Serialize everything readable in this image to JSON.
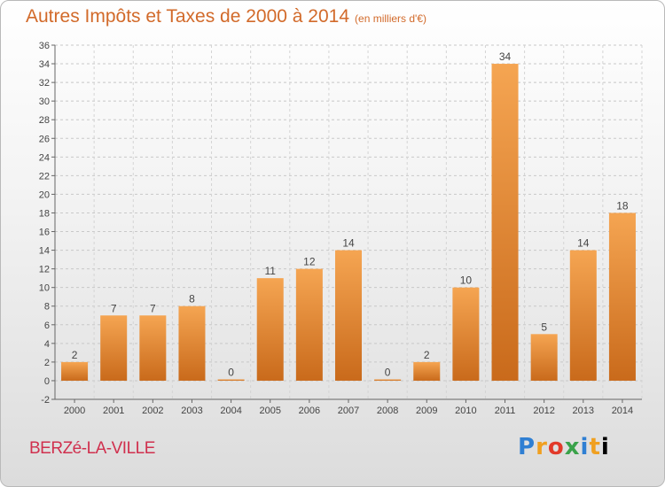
{
  "header": {
    "title": "Autres Impôts et Taxes de 2000 à 2014",
    "unit": "(en milliers d'€)"
  },
  "footer": {
    "place": "BERZé-LA-VILLE",
    "logo_letters": [
      "P",
      "r",
      "o",
      "x",
      "i",
      "t",
      "i"
    ]
  },
  "colors": {
    "bar_light": "#f5a552",
    "bar_dark": "#c96a1b",
    "title": "#d26a2a",
    "place": "#d0304e"
  },
  "chart_data": {
    "type": "bar",
    "categories": [
      "2000",
      "2001",
      "2002",
      "2003",
      "2004",
      "2005",
      "2006",
      "2007",
      "2008",
      "2009",
      "2010",
      "2011",
      "2012",
      "2013",
      "2014"
    ],
    "values": [
      2,
      7,
      7,
      8,
      0,
      11,
      12,
      14,
      0,
      2,
      10,
      34,
      5,
      14,
      18
    ],
    "data_labels": [
      "2",
      "7",
      "7",
      "8",
      "0",
      "11",
      "12",
      "14",
      "0",
      "2",
      "10",
      "34",
      "5",
      "14",
      "18"
    ],
    "ylim": [
      -2,
      36
    ],
    "yticks": [
      -2,
      0,
      2,
      4,
      6,
      8,
      10,
      12,
      14,
      16,
      18,
      20,
      22,
      24,
      26,
      28,
      30,
      32,
      34,
      36
    ],
    "grid": "horizontal dashed",
    "xlabel": "",
    "ylabel": ""
  }
}
